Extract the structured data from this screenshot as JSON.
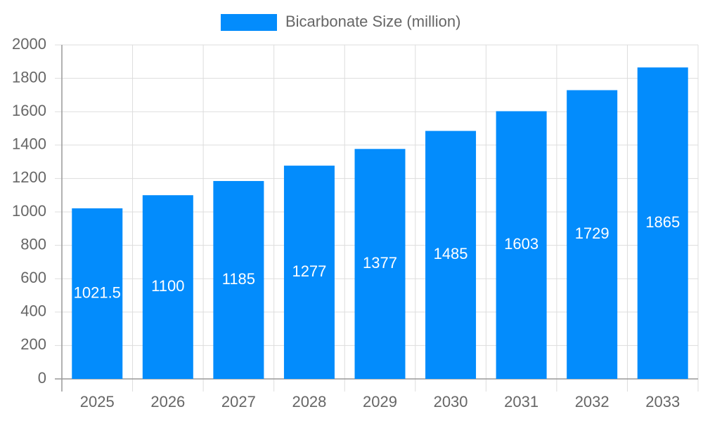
{
  "chart_data": {
    "type": "bar",
    "categories": [
      "2025",
      "2026",
      "2027",
      "2028",
      "2029",
      "2030",
      "2031",
      "2032",
      "2033"
    ],
    "series": [
      {
        "name": "Bicarbonate Size (million)",
        "color": "#038cfc",
        "values": [
          1021.5,
          1100,
          1185,
          1277,
          1377,
          1485,
          1603,
          1729,
          1865
        ]
      }
    ],
    "ylim": [
      0,
      2000
    ],
    "yticks": [
      0,
      200,
      400,
      600,
      800,
      1000,
      1200,
      1400,
      1600,
      1800,
      2000
    ],
    "grid": true,
    "legend": "top"
  }
}
